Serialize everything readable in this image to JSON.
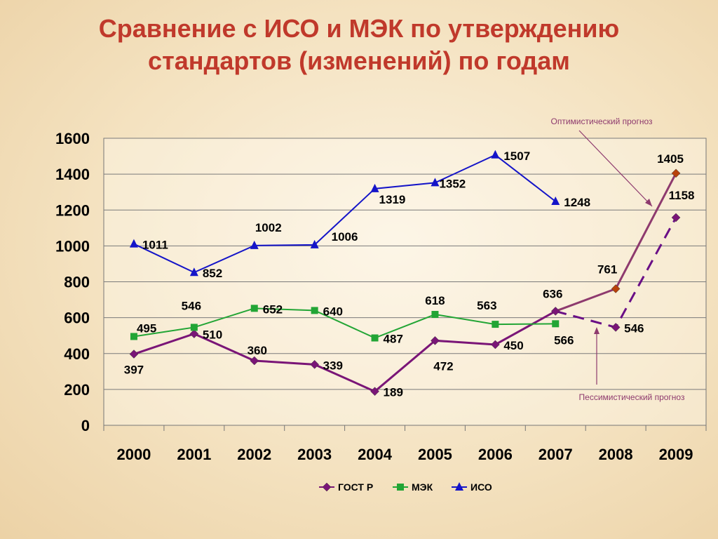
{
  "title_line1": "Сравнение с ИСО и МЭК по утверждению",
  "title_line2": "стандартов (изменений) по годам",
  "annotations": {
    "optimistic": "Оптимистический прогноз",
    "pessimistic": "Пессимистический прогноз"
  },
  "chart_data": {
    "type": "line",
    "categories": [
      "2000",
      "2001",
      "2002",
      "2003",
      "2004",
      "2005",
      "2006",
      "2007",
      "2008",
      "2009"
    ],
    "ylim": [
      0,
      1600
    ],
    "yticks": [
      0,
      200,
      400,
      600,
      800,
      1000,
      1200,
      1400,
      1600
    ],
    "grid": true,
    "legend_position": "bottom",
    "series": [
      {
        "name": "ГОСТ Р",
        "color": "#7a1577",
        "marker": "diamond",
        "values": [
          397,
          510,
          360,
          339,
          189,
          472,
          450,
          636,
          null,
          null
        ]
      },
      {
        "name": "МЭК",
        "color": "#22a535",
        "marker": "square",
        "values": [
          495,
          546,
          652,
          640,
          487,
          618,
          563,
          566,
          null,
          null
        ]
      },
      {
        "name": "ИСО",
        "color": "#1414c8",
        "marker": "triangle",
        "values": [
          1011,
          852,
          1002,
          1006,
          1319,
          1352,
          1507,
          1248,
          null,
          null
        ]
      }
    ],
    "forecast": {
      "optimistic": {
        "name": "Оптимистический прогноз",
        "color": "#8e3a6e",
        "points": [
          [
            "2007",
            636
          ],
          [
            "2008",
            761
          ],
          [
            "2009",
            1405
          ]
        ]
      },
      "pessimistic": {
        "name": "Пессимистический прогноз",
        "color": "#6a0f86",
        "points": [
          [
            "2007",
            636
          ],
          [
            "2008",
            546
          ],
          [
            "2009",
            1158
          ]
        ]
      }
    }
  }
}
